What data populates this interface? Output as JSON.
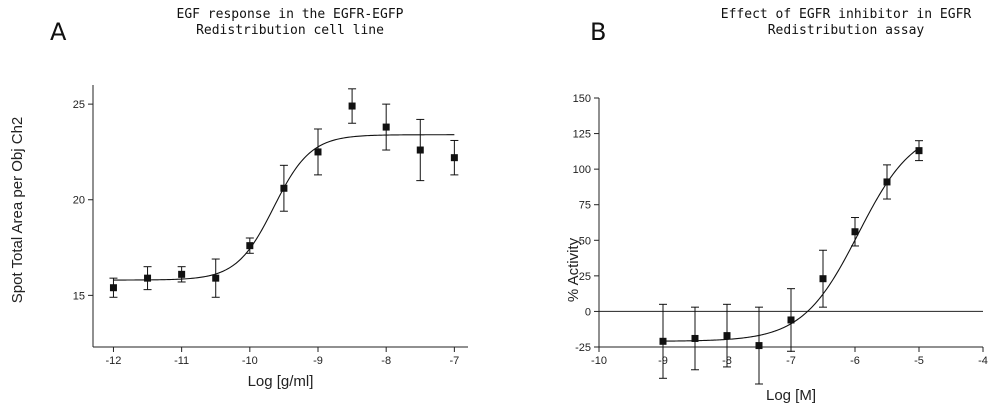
{
  "figure": {
    "panels": [
      {
        "letter": "A",
        "title_line1": "EGF response in the EGFR-EGFP",
        "title_line2": "Redistribution cell line"
      },
      {
        "letter": "B",
        "title_line1": "Effect of EGFR inhibitor in EGFR",
        "title_line2": "Redistribution assay"
      }
    ]
  },
  "chart_data": [
    {
      "type": "scatter",
      "panel": "A",
      "title": "EGF response in the EGFR-EGFP Redistribution cell line",
      "xlabel": "Log [g/ml]",
      "ylabel": "Spot Total Area per Obj Ch2",
      "xlim": [
        -12.3,
        -6.8
      ],
      "ylim": [
        12.3,
        26.0
      ],
      "xticks": [
        -12,
        -11,
        -10,
        -9,
        -8,
        -7
      ],
      "xtick_labels": [
        "-12",
        "-11",
        "-10",
        "-9",
        "-8",
        "-7"
      ],
      "yticks": [
        15,
        20,
        25
      ],
      "ytick_labels": [
        "15",
        "20",
        "25"
      ],
      "grid": false,
      "fit_curve": {
        "model": "sigmoidal dose-response",
        "bottom": 15.8,
        "top": 23.4,
        "logEC50": -9.65,
        "hill": 1.6
      },
      "series": [
        {
          "x": [
            -12,
            -11.5,
            -11,
            -10.5,
            -10,
            -9.5,
            -9,
            -8.5,
            -8,
            -7.5,
            -7
          ],
          "y": [
            15.4,
            15.9,
            16.1,
            15.9,
            17.6,
            20.6,
            22.5,
            24.9,
            23.8,
            22.6,
            22.2
          ],
          "error": [
            0.5,
            0.6,
            0.4,
            1.0,
            0.4,
            1.2,
            1.2,
            0.9,
            1.2,
            1.6,
            0.9
          ]
        }
      ]
    },
    {
      "type": "scatter",
      "panel": "B",
      "title": "Effect of EGFR inhibitor in EGFR Redistribution assay",
      "xlabel": "Log [M]",
      "ylabel": "% Activity",
      "xlim": [
        -10,
        -4
      ],
      "ylim": [
        -25,
        150
      ],
      "xticks": [
        -10,
        -9,
        -8,
        -7,
        -6,
        -5,
        -4
      ],
      "xtick_labels": [
        "-10",
        "-9",
        "-8",
        "-7",
        "-6",
        "-5",
        "-4"
      ],
      "yticks": [
        -25,
        0,
        25,
        50,
        75,
        100,
        125,
        150
      ],
      "ytick_labels": [
        "-25",
        "0",
        "25",
        "50",
        "75",
        "100",
        "125",
        "150"
      ],
      "zero_line": true,
      "grid": false,
      "fit_curve": {
        "model": "sigmoidal dose-response",
        "bottom": -21,
        "top": 130,
        "logEC50": -5.95,
        "hill": 1.0
      },
      "series": [
        {
          "x": [
            -9,
            -8.5,
            -8,
            -7.5,
            -7,
            -6.5,
            -6,
            -5.5,
            -5
          ],
          "y": [
            -21,
            -19,
            -17,
            -24,
            -6,
            23,
            56,
            91,
            113
          ],
          "error": [
            26,
            22,
            22,
            27,
            22,
            20,
            10,
            12,
            7
          ]
        }
      ]
    }
  ]
}
